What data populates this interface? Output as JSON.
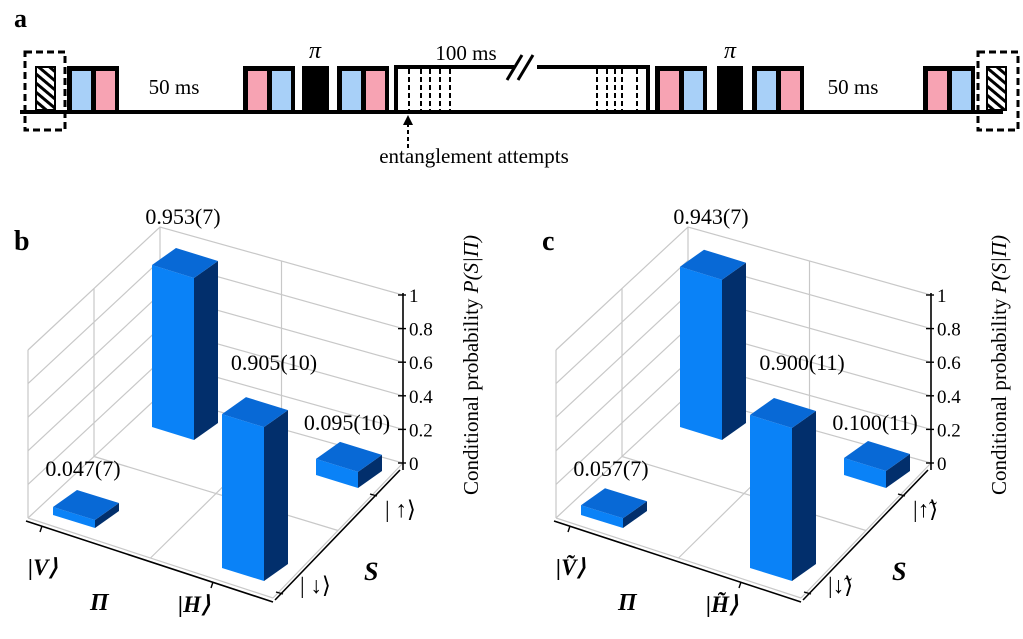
{
  "panel_a": {
    "label": "a",
    "pi_left": "π",
    "pi_right": "π",
    "wait_left": "50 ms",
    "wait_right": "50 ms",
    "entangle_duration": "100 ms",
    "arrow_label": "entanglement attempts",
    "colors": {
      "blue_pulse": "#a8d0f8",
      "pink_pulse": "#f7a3b3",
      "pi_pulse": "#000000"
    }
  },
  "chart_data": [
    {
      "type": "bar3d",
      "panel_label": "b",
      "zlabel_prefix": "Conditional probability ",
      "zlabel_expr": "P(S|Π)",
      "x_axis_title": "Π",
      "x_categories": [
        "|V⟩",
        "|H⟩"
      ],
      "y_axis_title": "S",
      "y_categories": [
        "| ↓⟩",
        "| ↑⟩"
      ],
      "zlim": [
        0,
        1
      ],
      "zticks": [
        "0",
        "0.2",
        "0.4",
        "0.6",
        "0.8",
        "1"
      ],
      "bars": [
        {
          "x": "|V⟩",
          "y": "| ↑⟩",
          "value": 0.953,
          "label": "0.953(7)"
        },
        {
          "x": "|H⟩",
          "y": "| ↑⟩",
          "value": 0.095,
          "label": "0.095(10)"
        },
        {
          "x": "|V⟩",
          "y": "| ↓⟩",
          "value": 0.047,
          "label": "0.047(7)"
        },
        {
          "x": "|H⟩",
          "y": "| ↓⟩",
          "value": 0.905,
          "label": "0.905(10)"
        }
      ],
      "colors": {
        "front": "#0a82f7",
        "top": "#0869d6",
        "side": "#022f6c"
      }
    },
    {
      "type": "bar3d",
      "panel_label": "c",
      "zlabel_prefix": "Conditional probability ",
      "zlabel_expr": "P(S|Π)",
      "x_axis_title": "Π",
      "x_categories": [
        "|Ṽ⟩",
        "|H̃⟩"
      ],
      "y_axis_title": "S",
      "y_categories": [
        "|↓̃⟩",
        "|↑̃⟩"
      ],
      "zlim": [
        0,
        1
      ],
      "zticks": [
        "0",
        "0.2",
        "0.4",
        "0.6",
        "0.8",
        "1"
      ],
      "bars": [
        {
          "x": "|Ṽ⟩",
          "y": "|↑̃⟩",
          "value": 0.943,
          "label": "0.943(7)"
        },
        {
          "x": "|H̃⟩",
          "y": "|↑̃⟩",
          "value": 0.1,
          "label": "0.100(11)"
        },
        {
          "x": "|Ṽ⟩",
          "y": "|↓̃⟩",
          "value": 0.057,
          "label": "0.057(7)"
        },
        {
          "x": "|H̃⟩",
          "y": "|↓̃⟩",
          "value": 0.9,
          "label": "0.900(11)"
        }
      ],
      "colors": {
        "front": "#0a82f7",
        "top": "#0869d6",
        "side": "#022f6c"
      }
    }
  ]
}
